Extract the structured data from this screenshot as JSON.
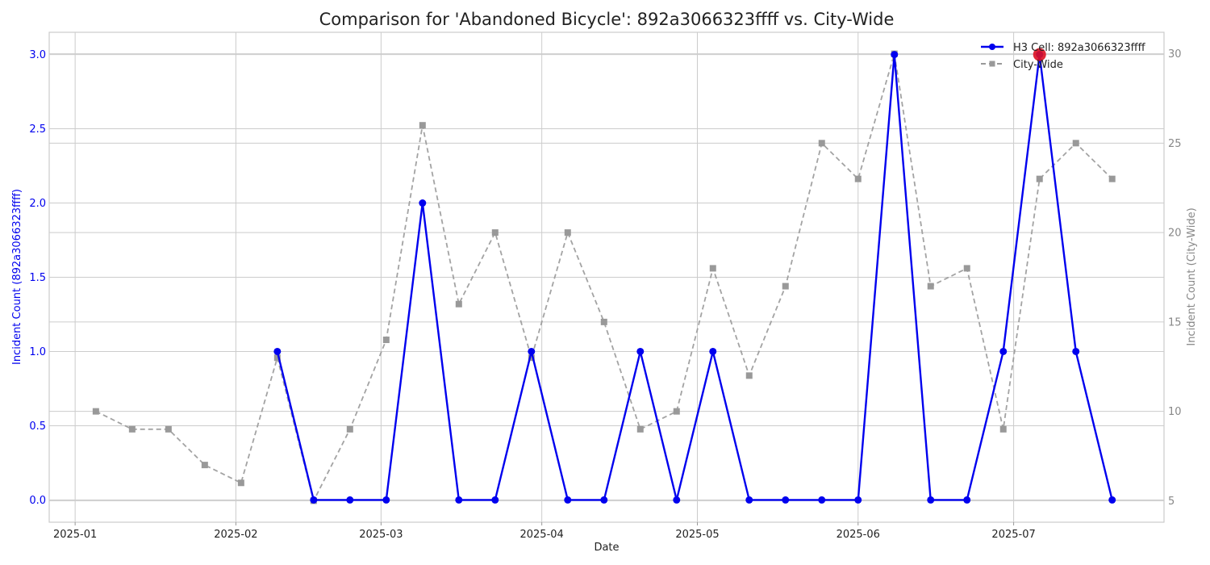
{
  "chart_data": {
    "type": "line",
    "title": "Comparison for 'Abandoned Bicycle': 892a3066323ffff vs. City-Wide",
    "xlabel": "Date",
    "ylabel_left": "Incident Count (892a3066323ffff)",
    "ylabel_right": "Incident Count (City-Wide)",
    "x_ticks": [
      "2025-01",
      "2025-02",
      "2025-03",
      "2025-04",
      "2025-05",
      "2025-06",
      "2025-07"
    ],
    "y_left_ticks": [
      "0.0",
      "0.5",
      "1.0",
      "1.5",
      "2.0",
      "2.5",
      "3.0"
    ],
    "y_right_ticks": [
      "5",
      "10",
      "15",
      "20",
      "25",
      "30"
    ],
    "xlim": [
      "2024-12-27",
      "2025-07-30"
    ],
    "ylim_left": [
      -0.15,
      3.15
    ],
    "ylim_right": [
      3.8,
      31.2
    ],
    "grid": true,
    "legend_position": "top-right",
    "series": [
      {
        "name": "H3 Cell: 892a3066323ffff",
        "axis": "left",
        "color": "#0000ee",
        "style": "solid",
        "marker": "circle",
        "x": [
          "2025-02-09",
          "2025-02-16",
          "2025-02-23",
          "2025-03-02",
          "2025-03-09",
          "2025-03-16",
          "2025-03-23",
          "2025-03-30",
          "2025-04-06",
          "2025-04-13",
          "2025-04-20",
          "2025-04-27",
          "2025-05-04",
          "2025-05-11",
          "2025-05-18",
          "2025-05-25",
          "2025-06-01",
          "2025-06-08",
          "2025-06-15",
          "2025-06-22",
          "2025-06-29",
          "2025-07-06",
          "2025-07-13",
          "2025-07-20"
        ],
        "values": [
          1,
          0,
          0,
          0,
          2,
          0,
          0,
          1,
          0,
          0,
          1,
          0,
          1,
          0,
          0,
          0,
          0,
          3,
          0,
          0,
          1,
          3,
          1,
          0
        ]
      },
      {
        "name": "City-Wide",
        "axis": "right",
        "color": "#999999",
        "style": "dashed",
        "marker": "square",
        "x": [
          "2025-01-05",
          "2025-01-12",
          "2025-01-19",
          "2025-01-26",
          "2025-02-02",
          "2025-02-09",
          "2025-02-16",
          "2025-02-23",
          "2025-03-02",
          "2025-03-09",
          "2025-03-16",
          "2025-03-23",
          "2025-03-30",
          "2025-04-06",
          "2025-04-13",
          "2025-04-20",
          "2025-04-27",
          "2025-05-04",
          "2025-05-11",
          "2025-05-18",
          "2025-05-25",
          "2025-06-01",
          "2025-06-08",
          "2025-06-15",
          "2025-06-22",
          "2025-06-29",
          "2025-07-06",
          "2025-07-13",
          "2025-07-20"
        ],
        "values": [
          10,
          9,
          9,
          7,
          6,
          13,
          5,
          9,
          14,
          26,
          16,
          20,
          13,
          20,
          15,
          9,
          10,
          18,
          12,
          17,
          25,
          23,
          30,
          17,
          18,
          9,
          23,
          25,
          23
        ]
      }
    ],
    "highlight": {
      "x": "2025-07-06",
      "value": 3,
      "axis": "left",
      "color": "#dd1122"
    },
    "colors": {
      "left_axis": "#0000ee",
      "right_axis": "#888888",
      "grid": "#cccccc",
      "frame": "#cccccc"
    }
  }
}
